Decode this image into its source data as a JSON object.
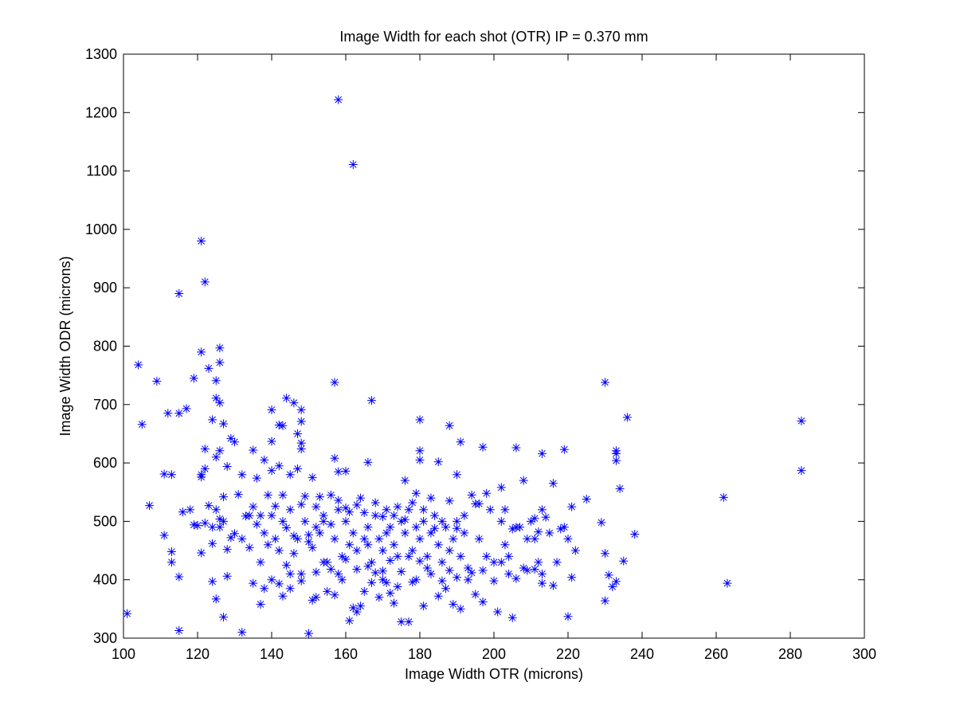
{
  "chart_data": {
    "type": "scatter",
    "title": "Image Width for each shot (OTR) IP = 0.370 mm",
    "xlabel": "Image Width OTR (microns)",
    "ylabel": "Image Width ODR (microns)",
    "xlim": [
      100,
      300
    ],
    "ylim": [
      300,
      1300
    ],
    "xticks": [
      100,
      120,
      140,
      160,
      180,
      200,
      220,
      240,
      260,
      280,
      300
    ],
    "yticks": [
      300,
      400,
      500,
      600,
      700,
      800,
      900,
      1000,
      1100,
      1200,
      1300
    ],
    "grid": false,
    "marker": "asterisk",
    "marker_color": "#0000ff",
    "points": [
      [
        158,
        1222
      ],
      [
        162,
        1111
      ],
      [
        121,
        980
      ],
      [
        122,
        910
      ],
      [
        115,
        890
      ],
      [
        121,
        790
      ],
      [
        126,
        797
      ],
      [
        104,
        768
      ],
      [
        119,
        745
      ],
      [
        123,
        762
      ],
      [
        125,
        741
      ],
      [
        126,
        772
      ],
      [
        109,
        740
      ],
      [
        157,
        738
      ],
      [
        230,
        738
      ],
      [
        167,
        707
      ],
      [
        144,
        711
      ],
      [
        146,
        703
      ],
      [
        126,
        703
      ],
      [
        125,
        711
      ],
      [
        117,
        693
      ],
      [
        105,
        666
      ],
      [
        112,
        685
      ],
      [
        115,
        685
      ],
      [
        148,
        691
      ],
      [
        140,
        691
      ],
      [
        124,
        674
      ],
      [
        127,
        667
      ],
      [
        148,
        671
      ],
      [
        142,
        665
      ],
      [
        143,
        664
      ],
      [
        180,
        674
      ],
      [
        188,
        664
      ],
      [
        236,
        678
      ],
      [
        283,
        672
      ],
      [
        147,
        650
      ],
      [
        129,
        642
      ],
      [
        130,
        636
      ],
      [
        191,
        636
      ],
      [
        140,
        637
      ],
      [
        148,
        634
      ],
      [
        122,
        624
      ],
      [
        126,
        621
      ],
      [
        135,
        622
      ],
      [
        148,
        624
      ],
      [
        180,
        621
      ],
      [
        197,
        627
      ],
      [
        206,
        626
      ],
      [
        219,
        623
      ],
      [
        233,
        621
      ],
      [
        233,
        616
      ],
      [
        213,
        616
      ],
      [
        107,
        527
      ],
      [
        111,
        581
      ],
      [
        113,
        580
      ],
      [
        121,
        580
      ],
      [
        122,
        590
      ],
      [
        125,
        610
      ],
      [
        128,
        594
      ],
      [
        132,
        580
      ],
      [
        138,
        605
      ],
      [
        140,
        587
      ],
      [
        142,
        595
      ],
      [
        145,
        580
      ],
      [
        147,
        590
      ],
      [
        151,
        575
      ],
      [
        157,
        608
      ],
      [
        158,
        585
      ],
      [
        160,
        586
      ],
      [
        166,
        601
      ],
      [
        176,
        570
      ],
      [
        180,
        605
      ],
      [
        185,
        602
      ],
      [
        190,
        580
      ],
      [
        198,
        548
      ],
      [
        202,
        558
      ],
      [
        208,
        570
      ],
      [
        216,
        565
      ],
      [
        233,
        604
      ],
      [
        234,
        556
      ],
      [
        283,
        587
      ],
      [
        262,
        541
      ],
      [
        225,
        538
      ],
      [
        213,
        520
      ],
      [
        207,
        490
      ],
      [
        111,
        476
      ],
      [
        113,
        448
      ],
      [
        113,
        430
      ],
      [
        115,
        405
      ],
      [
        116,
        516
      ],
      [
        120,
        493
      ],
      [
        121,
        446
      ],
      [
        122,
        497
      ],
      [
        124,
        490
      ],
      [
        124,
        462
      ],
      [
        125,
        520
      ],
      [
        126,
        504
      ],
      [
        127,
        500
      ],
      [
        128,
        452
      ],
      [
        128,
        406
      ],
      [
        130,
        479
      ],
      [
        132,
        470
      ],
      [
        134,
        455
      ],
      [
        135,
        525
      ],
      [
        136,
        495
      ],
      [
        137,
        430
      ],
      [
        138,
        480
      ],
      [
        139,
        460
      ],
      [
        140,
        510
      ],
      [
        141,
        470
      ],
      [
        142,
        450
      ],
      [
        143,
        500
      ],
      [
        144,
        425
      ],
      [
        145,
        520
      ],
      [
        146,
        445
      ],
      [
        147,
        470
      ],
      [
        148,
        410
      ],
      [
        149,
        500
      ],
      [
        150,
        465
      ],
      [
        151,
        455
      ],
      [
        152,
        490
      ],
      [
        153,
        480
      ],
      [
        154,
        510
      ],
      [
        155,
        430
      ],
      [
        156,
        545
      ],
      [
        157,
        470
      ],
      [
        158,
        520
      ],
      [
        159,
        440
      ],
      [
        160,
        500
      ],
      [
        161,
        460
      ],
      [
        162,
        480
      ],
      [
        163,
        450
      ],
      [
        164,
        540
      ],
      [
        165,
        470
      ],
      [
        166,
        490
      ],
      [
        167,
        430
      ],
      [
        168,
        510
      ],
      [
        169,
        470
      ],
      [
        170,
        450
      ],
      [
        171,
        520
      ],
      [
        172,
        490
      ],
      [
        173,
        460
      ],
      [
        174,
        440
      ],
      [
        175,
        500
      ],
      [
        176,
        480
      ],
      [
        177,
        520
      ],
      [
        178,
        450
      ],
      [
        179,
        490
      ],
      [
        180,
        470
      ],
      [
        181,
        500
      ],
      [
        182,
        440
      ],
      [
        183,
        480
      ],
      [
        184,
        510
      ],
      [
        185,
        460
      ],
      [
        186,
        430
      ],
      [
        187,
        490
      ],
      [
        188,
        450
      ],
      [
        189,
        470
      ],
      [
        190,
        500
      ],
      [
        191,
        440
      ],
      [
        192,
        480
      ],
      [
        193,
        420
      ],
      [
        195,
        530
      ],
      [
        196,
        470
      ],
      [
        198,
        440
      ],
      [
        200,
        430
      ],
      [
        202,
        500
      ],
      [
        203,
        460
      ],
      [
        204,
        440
      ],
      [
        206,
        490
      ],
      [
        208,
        420
      ],
      [
        210,
        500
      ],
      [
        211,
        470
      ],
      [
        212,
        430
      ],
      [
        213,
        410
      ],
      [
        215,
        480
      ],
      [
        217,
        430
      ],
      [
        219,
        490
      ],
      [
        220,
        470
      ],
      [
        221,
        525
      ],
      [
        222,
        450
      ],
      [
        229,
        498
      ],
      [
        230,
        445
      ],
      [
        231,
        408
      ],
      [
        232,
        388
      ],
      [
        235,
        432
      ],
      [
        238,
        478
      ],
      [
        263,
        394
      ],
      [
        101,
        342
      ],
      [
        115,
        313
      ],
      [
        124,
        397
      ],
      [
        125,
        367
      ],
      [
        127,
        336
      ],
      [
        132,
        310
      ],
      [
        135,
        394
      ],
      [
        137,
        358
      ],
      [
        138,
        385
      ],
      [
        140,
        400
      ],
      [
        142,
        393
      ],
      [
        143,
        372
      ],
      [
        145,
        410
      ],
      [
        150,
        308
      ],
      [
        151,
        365
      ],
      [
        152,
        370
      ],
      [
        155,
        380
      ],
      [
        157,
        374
      ],
      [
        159,
        400
      ],
      [
        161,
        330
      ],
      [
        162,
        352
      ],
      [
        163,
        345
      ],
      [
        164,
        355
      ],
      [
        165,
        380
      ],
      [
        167,
        395
      ],
      [
        169,
        370
      ],
      [
        170,
        400
      ],
      [
        171,
        395
      ],
      [
        172,
        377
      ],
      [
        173,
        360
      ],
      [
        174,
        388
      ],
      [
        175,
        328
      ],
      [
        177,
        328
      ],
      [
        178,
        396
      ],
      [
        179,
        400
      ],
      [
        181,
        355
      ],
      [
        182,
        420
      ],
      [
        185,
        372
      ],
      [
        187,
        385
      ],
      [
        189,
        358
      ],
      [
        191,
        350
      ],
      [
        193,
        400
      ],
      [
        195,
        375
      ],
      [
        197,
        362
      ],
      [
        201,
        345
      ],
      [
        204,
        410
      ],
      [
        205,
        335
      ],
      [
        213,
        394
      ],
      [
        216,
        390
      ],
      [
        220,
        337
      ],
      [
        221,
        404
      ],
      [
        230,
        364
      ],
      [
        233,
        397
      ],
      [
        118,
        520
      ],
      [
        119,
        494
      ],
      [
        121,
        576
      ],
      [
        123,
        527
      ],
      [
        126,
        490
      ],
      [
        127,
        542
      ],
      [
        129,
        472
      ],
      [
        131,
        546
      ],
      [
        133,
        509
      ],
      [
        134,
        510
      ],
      [
        136,
        574
      ],
      [
        137,
        510
      ],
      [
        139,
        545
      ],
      [
        141,
        526
      ],
      [
        143,
        545
      ],
      [
        144,
        489
      ],
      [
        146,
        475
      ],
      [
        148,
        529
      ],
      [
        149,
        543
      ],
      [
        150,
        477
      ],
      [
        152,
        525
      ],
      [
        153,
        542
      ],
      [
        154,
        500
      ],
      [
        156,
        495
      ],
      [
        158,
        536
      ],
      [
        160,
        523
      ],
      [
        161,
        516
      ],
      [
        163,
        528
      ],
      [
        165,
        515
      ],
      [
        166,
        460
      ],
      [
        168,
        532
      ],
      [
        170,
        508
      ],
      [
        171,
        480
      ],
      [
        173,
        510
      ],
      [
        174,
        525
      ],
      [
        176,
        503
      ],
      [
        178,
        532
      ],
      [
        179,
        548
      ],
      [
        181,
        520
      ],
      [
        183,
        540
      ],
      [
        184,
        488
      ],
      [
        186,
        500
      ],
      [
        188,
        535
      ],
      [
        190,
        488
      ],
      [
        192,
        510
      ],
      [
        194,
        545
      ],
      [
        196,
        530
      ],
      [
        199,
        520
      ],
      [
        203,
        520
      ],
      [
        205,
        487
      ],
      [
        209,
        470
      ],
      [
        211,
        505
      ],
      [
        212,
        482
      ],
      [
        214,
        507
      ],
      [
        218,
        487
      ],
      [
        145,
        385
      ],
      [
        148,
        398
      ],
      [
        152,
        413
      ],
      [
        154,
        430
      ],
      [
        156,
        418
      ],
      [
        158,
        410
      ],
      [
        160,
        435
      ],
      [
        163,
        418
      ],
      [
        166,
        423
      ],
      [
        168,
        412
      ],
      [
        170,
        415
      ],
      [
        172,
        433
      ],
      [
        175,
        414
      ],
      [
        177,
        440
      ],
      [
        180,
        432
      ],
      [
        183,
        410
      ],
      [
        186,
        398
      ],
      [
        188,
        416
      ],
      [
        190,
        404
      ],
      [
        194,
        412
      ],
      [
        197,
        416
      ],
      [
        200,
        398
      ],
      [
        202,
        430
      ],
      [
        206,
        402
      ],
      [
        209,
        416
      ],
      [
        211,
        418
      ]
    ]
  }
}
